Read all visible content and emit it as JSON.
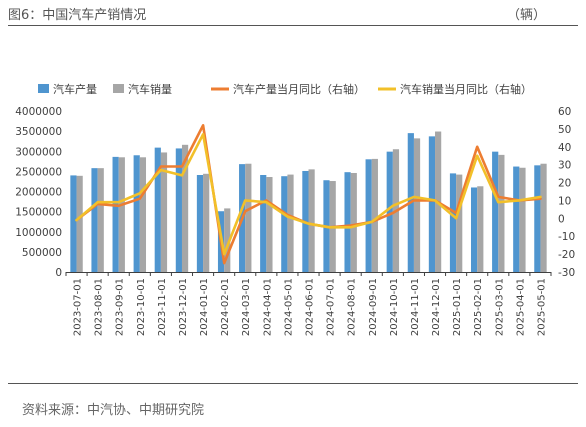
{
  "figure": {
    "title": "图6：中国汽车产销情况",
    "unit": "（辆）",
    "source": "资料来源：中汽协、中期研究院"
  },
  "colors": {
    "production_bar": "#4f95cf",
    "sales_bar": "#a6a6a6",
    "production_yoy": "#ed7d31",
    "sales_yoy": "#f2c029",
    "axis_text": "#404040",
    "text": "#555555"
  },
  "chart_data": {
    "type": "bar",
    "categories": [
      "2023-07-01",
      "2023-08-01",
      "2023-09-01",
      "2023-10-01",
      "2023-11-01",
      "2023-12-01",
      "2024-01-01",
      "2024-02-01",
      "2024-03-01",
      "2024-04-01",
      "2024-05-01",
      "2024-06-01",
      "2024-07-01",
      "2024-08-01",
      "2024-09-01",
      "2024-10-01",
      "2024-11-01",
      "2024-12-01",
      "2025-01-01",
      "2025-02-01",
      "2025-03-01",
      "2025-04-01",
      "2025-05-01"
    ],
    "series": [
      {
        "name": "汽车产量",
        "kind": "bar",
        "axis": "left",
        "color": "#4f95cf",
        "values": [
          2400000,
          2580000,
          2860000,
          2900000,
          3090000,
          3070000,
          2410000,
          1510000,
          2680000,
          2410000,
          2380000,
          2510000,
          2280000,
          2480000,
          2800000,
          2990000,
          3450000,
          3370000,
          2450000,
          2100000,
          2990000,
          2620000,
          2650000
        ]
      },
      {
        "name": "汽车销量",
        "kind": "bar",
        "axis": "left",
        "color": "#a6a6a6",
        "values": [
          2390000,
          2580000,
          2850000,
          2850000,
          2970000,
          3160000,
          2440000,
          1580000,
          2690000,
          2360000,
          2420000,
          2550000,
          2260000,
          2460000,
          2810000,
          3050000,
          3320000,
          3490000,
          2420000,
          2130000,
          2910000,
          2590000,
          2690000
        ]
      },
      {
        "name": "汽车产量当月同比（右轴）",
        "kind": "line",
        "axis": "right",
        "color": "#ed7d31",
        "values": [
          -1,
          8,
          7,
          11,
          29,
          29,
          52,
          -25,
          4,
          10,
          2,
          -3,
          -5,
          -4,
          -2,
          3,
          10,
          10,
          3,
          40,
          12,
          10,
          11
        ]
      },
      {
        "name": "汽车销量当月同比（右轴）",
        "kind": "line",
        "axis": "right",
        "color": "#f2c029",
        "values": [
          -1,
          9,
          9,
          14,
          27,
          24,
          47,
          -20,
          10,
          9,
          1,
          -3,
          -5,
          -5,
          -2,
          7,
          12,
          10,
          0,
          35,
          9,
          10,
          12
        ]
      }
    ],
    "y_left": {
      "min": 0,
      "max": 4000000,
      "step": 500000,
      "ticks": [
        "0",
        "500000",
        "1000000",
        "1500000",
        "2000000",
        "2500000",
        "3000000",
        "3500000",
        "4000000"
      ]
    },
    "y_right": {
      "min": -30,
      "max": 60,
      "step": 10,
      "ticks": [
        "-30",
        "-20",
        "-10",
        "0",
        "10",
        "20",
        "30",
        "40",
        "50",
        "60"
      ]
    },
    "grid": false,
    "legend_position": "top"
  }
}
